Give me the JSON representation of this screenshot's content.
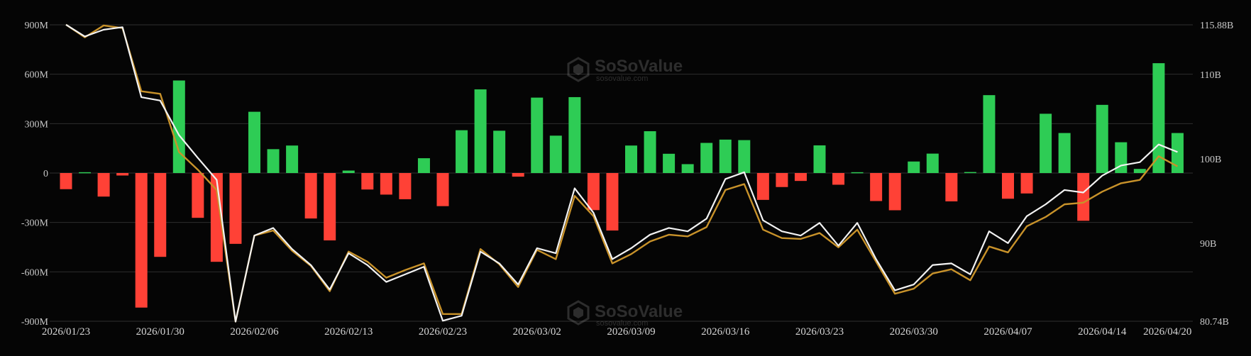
{
  "watermark": {
    "brand": "SoSoValue",
    "domain": "sosovalue.com"
  },
  "colors": {
    "positive": "#2ecc55",
    "negative": "#ff4136",
    "line_white": "#f2f2f2",
    "line_gold": "#c8922a",
    "grid": "#2e2e2e",
    "background": "#000000"
  },
  "chart_data": {
    "type": "bar",
    "title": "",
    "xlabel": "",
    "ylabel": "",
    "grid": true,
    "legend": "none",
    "ylim_left": [
      -900000000,
      900000000
    ],
    "ylim_right": [
      80740000000,
      115880000000
    ],
    "left_ticks": [
      {
        "value": 900000000,
        "label": "900M"
      },
      {
        "value": 600000000,
        "label": "600M"
      },
      {
        "value": 300000000,
        "label": "300M"
      },
      {
        "value": 0,
        "label": "0"
      },
      {
        "value": -300000000,
        "label": "-300M"
      },
      {
        "value": -600000000,
        "label": "-600M"
      },
      {
        "value": -900000000,
        "label": "-900M"
      }
    ],
    "right_ticks": [
      {
        "value": 115880000000,
        "label": "115.88B"
      },
      {
        "value": 110000000000,
        "label": "110B"
      },
      {
        "value": 100000000000,
        "label": "100B"
      },
      {
        "value": 90000000000,
        "label": "90B"
      },
      {
        "value": 80740000000,
        "label": "80.74B"
      }
    ],
    "x_tick_labels": [
      {
        "index": 0,
        "label": "2026/01/23"
      },
      {
        "index": 5,
        "label": "2026/01/30"
      },
      {
        "index": 10,
        "label": "2026/02/06"
      },
      {
        "index": 15,
        "label": "2026/02/13"
      },
      {
        "index": 20,
        "label": "2026/02/23"
      },
      {
        "index": 25,
        "label": "2026/03/02"
      },
      {
        "index": 30,
        "label": "2026/03/09"
      },
      {
        "index": 35,
        "label": "2026/03/16"
      },
      {
        "index": 40,
        "label": "2026/03/23"
      },
      {
        "index": 45,
        "label": "2026/03/30"
      },
      {
        "index": 50,
        "label": "2026/04/07"
      },
      {
        "index": 55,
        "label": "2026/04/14"
      },
      {
        "index": 59,
        "label": "2026/04/20"
      }
    ],
    "series": [
      {
        "values": [
          -98,
          5,
          -143,
          -15,
          -817,
          -509,
          562,
          -272,
          -539,
          -430,
          372,
          145,
          167,
          -276,
          -409,
          15,
          -100,
          -131,
          -159,
          90,
          -201,
          260,
          508,
          257,
          -22,
          458,
          227,
          461,
          -225,
          -349,
          167,
          254,
          117,
          54,
          183,
          203,
          200,
          -163,
          -85,
          -48,
          168,
          -71,
          5,
          -170,
          -226,
          70,
          118,
          -172,
          6,
          473,
          -156,
          -124,
          360,
          243,
          -290,
          414,
          187,
          25,
          667,
          243
        ]
      },
      {
        "values": [
          115.9,
          114.5,
          115.3,
          115.6,
          107.3,
          106.9,
          102.8,
          100.1,
          97.5,
          80.7,
          90.9,
          91.8,
          89.3,
          87.4,
          84.5,
          88.8,
          87.4,
          85.4,
          86.3,
          87.2,
          80.8,
          81.4,
          89.0,
          87.6,
          85.1,
          89.4,
          88.8,
          96.5,
          93.6,
          88.1,
          89.4,
          91.0,
          91.8,
          91.4,
          92.9,
          97.6,
          98.4,
          92.7,
          91.4,
          90.9,
          92.4,
          89.7,
          92.4,
          88.1,
          84.4,
          85.1,
          87.4,
          87.6,
          86.3,
          91.4,
          90.0,
          93.2,
          94.6,
          96.3,
          96.0,
          98.0,
          99.2,
          99.6,
          101.7,
          100.8
        ]
      },
      {
        "values": [
          115.9,
          114.4,
          115.8,
          115.5,
          108.0,
          107.7,
          100.8,
          98.7,
          96.3,
          80.7,
          90.9,
          91.5,
          89.1,
          87.3,
          84.3,
          89.0,
          87.8,
          85.9,
          86.8,
          87.6,
          81.6,
          81.6,
          89.3,
          87.5,
          84.8,
          89.2,
          88.1,
          95.6,
          93.2,
          87.6,
          88.7,
          90.2,
          91.0,
          90.8,
          91.9,
          96.3,
          97.0,
          91.6,
          90.6,
          90.5,
          91.2,
          89.5,
          91.6,
          87.8,
          84.0,
          84.6,
          86.4,
          86.9,
          85.6,
          89.6,
          88.9,
          92.0,
          93.1,
          94.6,
          94.8,
          96.1,
          97.1,
          97.5,
          100.3,
          99.1
        ]
      }
    ]
  }
}
